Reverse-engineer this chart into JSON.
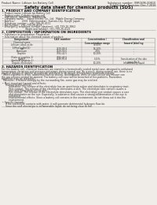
{
  "bg_color": "#f0ede8",
  "title": "Safety data sheet for chemical products (SDS)",
  "header_left": "Product Name: Lithium Ion Battery Cell",
  "header_right_line1": "Substance number: 99R0496-00B10",
  "header_right_line2": "Established / Revision: Dec.7.2016",
  "section1_title": "1. PRODUCT AND COMPANY IDENTIFICATION",
  "section1_lines": [
    " • Product name: Lithium Ion Battery Cell",
    " • Product code: Cylindrical-type cell",
    "    (INR18650, INR18650, INR18650A,",
    " • Company name:    Sanyo Electric Co., Ltd.  Mobile Energy Company",
    " • Address:         2001  Kamimunakari, Sumoto-City, Hyogo, Japan",
    " • Telephone number:   +81-799-26-4111",
    " • Fax number:  +81-799-26-4123",
    " • Emergency telephone number (daytime): +81-799-26-3862",
    "                              (Night and holiday): +81-799-26-4121"
  ],
  "section2_title": "2. COMPOSITION / INFORMATION ON INGREDIENTS",
  "section2_sub": " • Substance or preparation: Preparation",
  "section2_sub2": " • Information about the chemical nature of product:",
  "table_rows": [
    [
      "Lithium cobalt oxide\n(LiMnxCoyNizO2)",
      "-",
      "30-60%",
      "-"
    ],
    [
      "Iron",
      "7439-89-6",
      "16-20%",
      "-"
    ],
    [
      "Aluminum",
      "7429-90-5",
      "2-6%",
      "-"
    ],
    [
      "Graphite\n(Flake or graphite-1)\n(Artificial graphite-1)",
      "7782-42-5\n7782-42-5",
      "10-20%",
      "-"
    ],
    [
      "Copper",
      "7440-50-8",
      "5-15%",
      "Sensitization of the skin\ngroup No.2"
    ],
    [
      "Organic electrolyte",
      "-",
      "10-20%",
      "Inflammatory liquid"
    ]
  ],
  "section3_title": "3. HAZARDS IDENTIFICATION",
  "section3_lines": [
    "For this battery cell, chemical materials are stored in a hermetically sealed metal case, designed to withstand",
    "temperature variations and pressure-pulsations during normal use. As a result, during normal use, there is no",
    "physical danger of ignition or explosion and there is no danger of hazardous materials leakage.",
    "  When exposed to a fire, added mechanical shocks, decomposed, wires or short-circuit any misuse can",
    "the gas release ventral be opened. The battery cell case will be breached of fire-patterns. Hazardous",
    "materials may be released.",
    "  Moreover, if heated strongly by the surrounding fire, some gas may be emitted.",
    "",
    " • Most important hazard and effects:",
    "     Human health effects:",
    "         Inhalation: The release of the electrolyte has an anesthesia action and stimulates to respiratory tract.",
    "         Skin contact: The release of the electrolyte stimulates a skin. The electrolyte skin contact causes a",
    "         sore and stimulation on the skin.",
    "         Eye contact: The release of the electrolyte stimulates eyes. The electrolyte eye contact causes a sore",
    "         and stimulation on the eye. Especially, a substance that causes a strong inflammation of the eye is",
    "         contained.",
    "         Environmental effects: Since a battery cell remains in the environment, do not throw out it into the",
    "         environment.",
    "",
    " • Specific hazards:",
    "     If the electrolyte contacts with water, it will generate detrimental hydrogen fluoride.",
    "     Since the seal electrolyte is inflammable liquid, do not bring close to fire."
  ],
  "text_color": "#333333",
  "line_color": "#aaaaaa",
  "table_line_color": "#999999",
  "title_color": "#111111",
  "section_title_color": "#111111"
}
